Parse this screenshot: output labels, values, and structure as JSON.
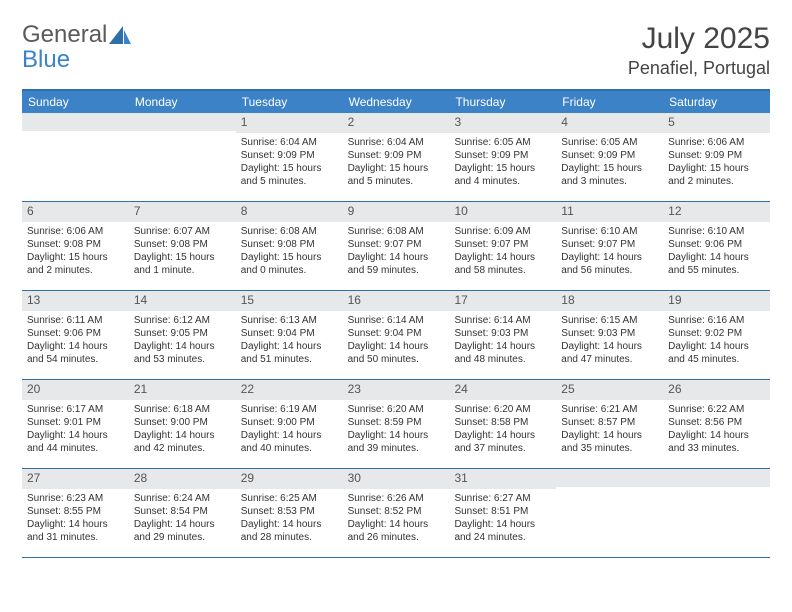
{
  "logo": {
    "line1": "General",
    "line2": "Blue",
    "color_gray": "#5a5a5a",
    "color_blue": "#3c82c6"
  },
  "header": {
    "month_title": "July 2025",
    "location": "Penafiel, Portugal"
  },
  "weekdays": [
    "Sunday",
    "Monday",
    "Tuesday",
    "Wednesday",
    "Thursday",
    "Friday",
    "Saturday"
  ],
  "colors": {
    "header_bar": "#3c82c6",
    "row_border": "#2f6fa8",
    "daynum_bg": "#e6e8ea",
    "text": "#333333"
  },
  "weeks": [
    [
      {
        "n": "",
        "sr": "",
        "ss": "",
        "dl": ""
      },
      {
        "n": "",
        "sr": "",
        "ss": "",
        "dl": ""
      },
      {
        "n": "1",
        "sr": "Sunrise: 6:04 AM",
        "ss": "Sunset: 9:09 PM",
        "dl": "Daylight: 15 hours and 5 minutes."
      },
      {
        "n": "2",
        "sr": "Sunrise: 6:04 AM",
        "ss": "Sunset: 9:09 PM",
        "dl": "Daylight: 15 hours and 5 minutes."
      },
      {
        "n": "3",
        "sr": "Sunrise: 6:05 AM",
        "ss": "Sunset: 9:09 PM",
        "dl": "Daylight: 15 hours and 4 minutes."
      },
      {
        "n": "4",
        "sr": "Sunrise: 6:05 AM",
        "ss": "Sunset: 9:09 PM",
        "dl": "Daylight: 15 hours and 3 minutes."
      },
      {
        "n": "5",
        "sr": "Sunrise: 6:06 AM",
        "ss": "Sunset: 9:09 PM",
        "dl": "Daylight: 15 hours and 2 minutes."
      }
    ],
    [
      {
        "n": "6",
        "sr": "Sunrise: 6:06 AM",
        "ss": "Sunset: 9:08 PM",
        "dl": "Daylight: 15 hours and 2 minutes."
      },
      {
        "n": "7",
        "sr": "Sunrise: 6:07 AM",
        "ss": "Sunset: 9:08 PM",
        "dl": "Daylight: 15 hours and 1 minute."
      },
      {
        "n": "8",
        "sr": "Sunrise: 6:08 AM",
        "ss": "Sunset: 9:08 PM",
        "dl": "Daylight: 15 hours and 0 minutes."
      },
      {
        "n": "9",
        "sr": "Sunrise: 6:08 AM",
        "ss": "Sunset: 9:07 PM",
        "dl": "Daylight: 14 hours and 59 minutes."
      },
      {
        "n": "10",
        "sr": "Sunrise: 6:09 AM",
        "ss": "Sunset: 9:07 PM",
        "dl": "Daylight: 14 hours and 58 minutes."
      },
      {
        "n": "11",
        "sr": "Sunrise: 6:10 AM",
        "ss": "Sunset: 9:07 PM",
        "dl": "Daylight: 14 hours and 56 minutes."
      },
      {
        "n": "12",
        "sr": "Sunrise: 6:10 AM",
        "ss": "Sunset: 9:06 PM",
        "dl": "Daylight: 14 hours and 55 minutes."
      }
    ],
    [
      {
        "n": "13",
        "sr": "Sunrise: 6:11 AM",
        "ss": "Sunset: 9:06 PM",
        "dl": "Daylight: 14 hours and 54 minutes."
      },
      {
        "n": "14",
        "sr": "Sunrise: 6:12 AM",
        "ss": "Sunset: 9:05 PM",
        "dl": "Daylight: 14 hours and 53 minutes."
      },
      {
        "n": "15",
        "sr": "Sunrise: 6:13 AM",
        "ss": "Sunset: 9:04 PM",
        "dl": "Daylight: 14 hours and 51 minutes."
      },
      {
        "n": "16",
        "sr": "Sunrise: 6:14 AM",
        "ss": "Sunset: 9:04 PM",
        "dl": "Daylight: 14 hours and 50 minutes."
      },
      {
        "n": "17",
        "sr": "Sunrise: 6:14 AM",
        "ss": "Sunset: 9:03 PM",
        "dl": "Daylight: 14 hours and 48 minutes."
      },
      {
        "n": "18",
        "sr": "Sunrise: 6:15 AM",
        "ss": "Sunset: 9:03 PM",
        "dl": "Daylight: 14 hours and 47 minutes."
      },
      {
        "n": "19",
        "sr": "Sunrise: 6:16 AM",
        "ss": "Sunset: 9:02 PM",
        "dl": "Daylight: 14 hours and 45 minutes."
      }
    ],
    [
      {
        "n": "20",
        "sr": "Sunrise: 6:17 AM",
        "ss": "Sunset: 9:01 PM",
        "dl": "Daylight: 14 hours and 44 minutes."
      },
      {
        "n": "21",
        "sr": "Sunrise: 6:18 AM",
        "ss": "Sunset: 9:00 PM",
        "dl": "Daylight: 14 hours and 42 minutes."
      },
      {
        "n": "22",
        "sr": "Sunrise: 6:19 AM",
        "ss": "Sunset: 9:00 PM",
        "dl": "Daylight: 14 hours and 40 minutes."
      },
      {
        "n": "23",
        "sr": "Sunrise: 6:20 AM",
        "ss": "Sunset: 8:59 PM",
        "dl": "Daylight: 14 hours and 39 minutes."
      },
      {
        "n": "24",
        "sr": "Sunrise: 6:20 AM",
        "ss": "Sunset: 8:58 PM",
        "dl": "Daylight: 14 hours and 37 minutes."
      },
      {
        "n": "25",
        "sr": "Sunrise: 6:21 AM",
        "ss": "Sunset: 8:57 PM",
        "dl": "Daylight: 14 hours and 35 minutes."
      },
      {
        "n": "26",
        "sr": "Sunrise: 6:22 AM",
        "ss": "Sunset: 8:56 PM",
        "dl": "Daylight: 14 hours and 33 minutes."
      }
    ],
    [
      {
        "n": "27",
        "sr": "Sunrise: 6:23 AM",
        "ss": "Sunset: 8:55 PM",
        "dl": "Daylight: 14 hours and 31 minutes."
      },
      {
        "n": "28",
        "sr": "Sunrise: 6:24 AM",
        "ss": "Sunset: 8:54 PM",
        "dl": "Daylight: 14 hours and 29 minutes."
      },
      {
        "n": "29",
        "sr": "Sunrise: 6:25 AM",
        "ss": "Sunset: 8:53 PM",
        "dl": "Daylight: 14 hours and 28 minutes."
      },
      {
        "n": "30",
        "sr": "Sunrise: 6:26 AM",
        "ss": "Sunset: 8:52 PM",
        "dl": "Daylight: 14 hours and 26 minutes."
      },
      {
        "n": "31",
        "sr": "Sunrise: 6:27 AM",
        "ss": "Sunset: 8:51 PM",
        "dl": "Daylight: 14 hours and 24 minutes."
      },
      {
        "n": "",
        "sr": "",
        "ss": "",
        "dl": ""
      },
      {
        "n": "",
        "sr": "",
        "ss": "",
        "dl": ""
      }
    ]
  ]
}
